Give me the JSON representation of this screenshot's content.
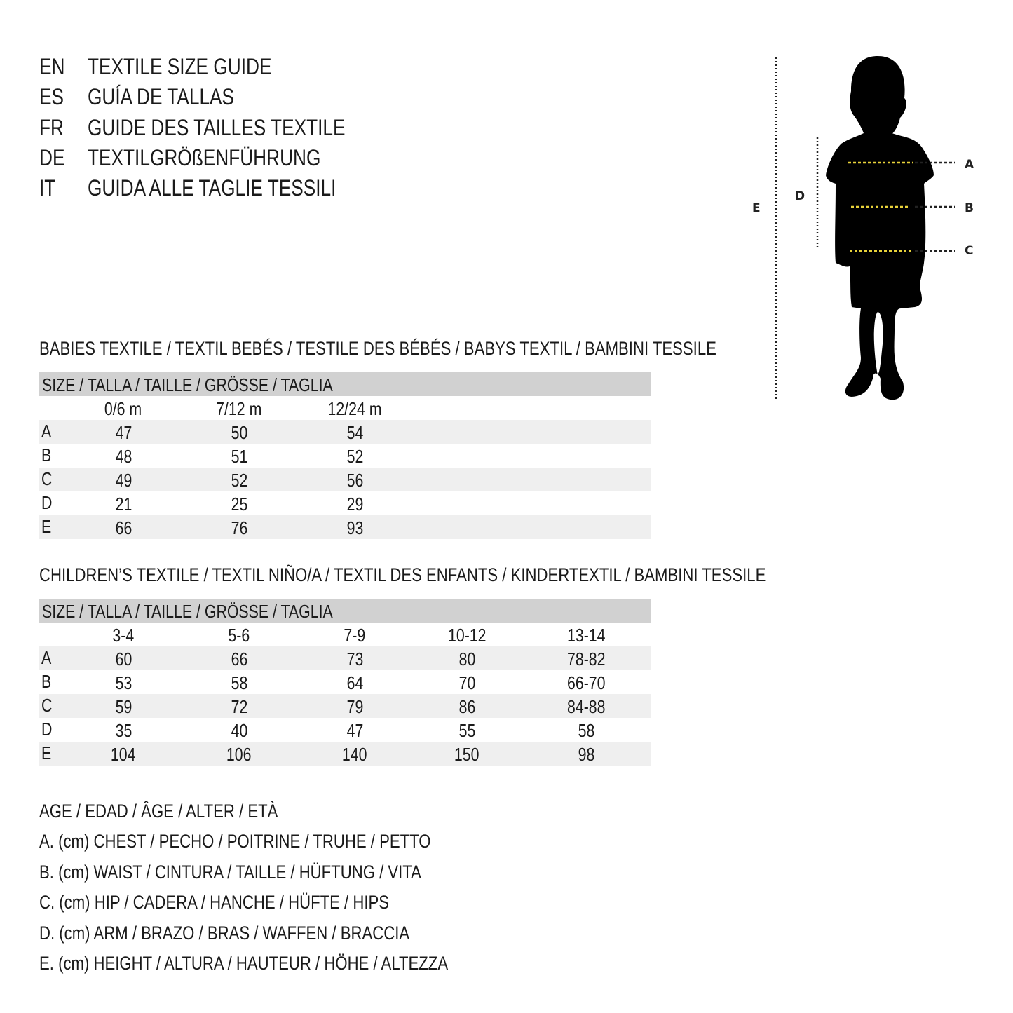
{
  "languages": [
    {
      "code": "EN",
      "title": "TEXTILE SIZE GUIDE"
    },
    {
      "code": "ES",
      "title": "GUÍA DE TALLAS"
    },
    {
      "code": "FR",
      "title": "GUIDE DES TAILLES TEXTILE"
    },
    {
      "code": "DE",
      "title": "TEXTILGRÖßENFÜHRUNG"
    },
    {
      "code": "IT",
      "title": "GUIDA ALLE TAGLIE TESSILI"
    }
  ],
  "figure": {
    "labels": {
      "A": "A",
      "B": "B",
      "C": "C",
      "D": "D",
      "E": "E"
    },
    "colors": {
      "silhouette": "#000000",
      "measure_line": "#e8d23a"
    }
  },
  "babies": {
    "title": "BABIES TEXTILE / TEXTIL BEBÉS / TESTILE DES BÉBÉS / BABYS TEXTIL / BAMBINI TESSILE",
    "header": "SIZE / TALLA / TAILLE / GRÖSSE / TAGLIA",
    "columns": [
      "0/6 m",
      "7/12 m",
      "12/24 m"
    ],
    "rows": [
      {
        "label": "A",
        "values": [
          "47",
          "50",
          "54"
        ]
      },
      {
        "label": "B",
        "values": [
          "48",
          "51",
          "52"
        ]
      },
      {
        "label": "C",
        "values": [
          "49",
          "52",
          "56"
        ]
      },
      {
        "label": "D",
        "values": [
          "21",
          "25",
          "29"
        ]
      },
      {
        "label": "E",
        "values": [
          "66",
          "76",
          "93"
        ]
      }
    ]
  },
  "children": {
    "title": "CHILDREN’S TEXTILE / TEXTIL NIÑO/A / TEXTIL DES ENFANTS / KINDERTEXTIL / BAMBINI TESSILE",
    "header": "SIZE / TALLA / TAILLE / GRÖSSE / TAGLIA",
    "columns": [
      "3-4",
      "5-6",
      "7-9",
      "10-12",
      "13-14"
    ],
    "rows": [
      {
        "label": "A",
        "values": [
          "60",
          "66",
          "73",
          "80",
          "78-82"
        ]
      },
      {
        "label": "B",
        "values": [
          "53",
          "58",
          "64",
          "70",
          "66-70"
        ]
      },
      {
        "label": "C",
        "values": [
          "59",
          "72",
          "79",
          "86",
          "84-88"
        ]
      },
      {
        "label": "D",
        "values": [
          "35",
          "40",
          "47",
          "55",
          "58"
        ]
      },
      {
        "label": "E",
        "values": [
          "104",
          "106",
          "140",
          "150",
          "98"
        ]
      }
    ]
  },
  "legend": [
    "AGE / EDAD / ÂGE / ALTER / ETÀ",
    "A. (cm) CHEST / PECHO / POITRINE / TRUHE / PETTO",
    "B. (cm) WAIST / CINTURA / TAILLE / HÜFTUNG / VITA",
    "C. (cm) HIP / CADERA / HANCHE / HÜFTE / HIPS",
    "D. (cm) ARM / BRAZO / BRAS / WAFFEN / BRACCIA",
    "E. (cm) HEIGHT / ALTURA / HAUTEUR / HÖHE / ALTEZZA"
  ]
}
